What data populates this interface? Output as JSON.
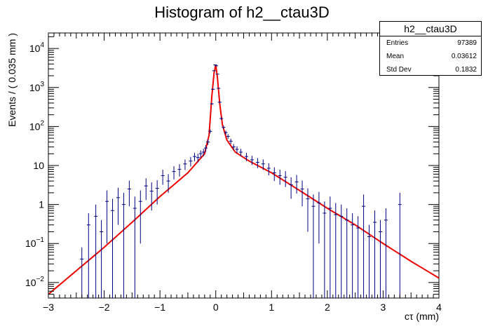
{
  "chart_data": {
    "type": "scatter",
    "title": "Histogram of h2__ctau3D",
    "xlabel": "cτ (mm)",
    "ylabel": "Events / ( 0.035 mm )",
    "xlim": [
      -3,
      4
    ],
    "ylim": [
      0.004,
      25000
    ],
    "yscale": "log",
    "x_ticks": [
      "−3",
      "−2",
      "−1",
      "0",
      "1",
      "2",
      "3",
      "4"
    ],
    "y_ticks": [
      {
        "v": 0.01,
        "label": "10^-2"
      },
      {
        "v": 0.1,
        "label": "10^-1"
      },
      {
        "v": 1,
        "label": "1"
      },
      {
        "v": 10,
        "label": "10"
      },
      {
        "v": 100,
        "label": "10^2"
      },
      {
        "v": 1000,
        "label": "10^3"
      },
      {
        "v": 10000,
        "label": "10^4"
      }
    ],
    "stats": {
      "name": "h2__ctau3D",
      "entries_label": "Entries",
      "entries": "97389",
      "mean_label": "Mean",
      "mean": "0.03612",
      "stddev_label": "Std Dev",
      "stddev": "0.1832"
    },
    "fit_curve": {
      "color": "#ee0000",
      "x": [
        -3.0,
        -2.5,
        -2.0,
        -1.5,
        -1.0,
        -0.5,
        -0.2,
        -0.12,
        -0.07,
        -0.03,
        0.0,
        0.03,
        0.07,
        0.12,
        0.2,
        0.35,
        0.6,
        1.0,
        1.5,
        2.0,
        2.5,
        3.0,
        3.5,
        4.0
      ],
      "y": [
        0.005,
        0.02,
        0.08,
        0.35,
        1.6,
        6.5,
        20,
        60,
        600,
        2400,
        3800,
        1800,
        400,
        110,
        45,
        22,
        13,
        6.5,
        2.3,
        0.8,
        0.3,
        0.1,
        0.035,
        0.013
      ]
    },
    "series": [
      {
        "color": "#000080",
        "x": [
          -2.4,
          -2.28,
          -2.15,
          -2.05,
          -1.95,
          -1.85,
          -1.75,
          -1.65,
          -1.55,
          -1.45,
          -1.35,
          -1.25,
          -1.15,
          -1.05,
          -0.95,
          -0.85,
          -0.75,
          -0.65,
          -0.55,
          -0.45,
          -0.38,
          -0.32,
          -0.27,
          -0.22,
          -0.18,
          -0.14,
          -0.1,
          -0.07,
          -0.05,
          -0.03,
          -0.01,
          0.01,
          0.03,
          0.05,
          0.07,
          0.1,
          0.14,
          0.18,
          0.22,
          0.27,
          0.32,
          0.38,
          0.45,
          0.55,
          0.65,
          0.75,
          0.85,
          0.95,
          1.05,
          1.15,
          1.25,
          1.35,
          1.45,
          1.55,
          1.65,
          1.75,
          1.85,
          1.95,
          2.05,
          2.15,
          2.25,
          2.35,
          2.45,
          2.55,
          2.65,
          2.75,
          2.85,
          2.95,
          3.05,
          3.3
        ],
        "y": [
          0.04,
          0.3,
          0.5,
          0.2,
          1.2,
          0.7,
          1.5,
          1.0,
          2.5,
          0.8,
          1.2,
          3.0,
          2.2,
          2.6,
          5.5,
          4.0,
          7.0,
          8.0,
          11,
          13,
          17,
          16,
          20,
          22,
          28,
          40,
          75,
          380,
          900,
          2700,
          3800,
          3600,
          2200,
          950,
          420,
          160,
          95,
          70,
          56,
          42,
          30,
          26,
          22,
          17,
          14,
          12,
          11,
          8.5,
          6.5,
          5.5,
          5.0,
          3.2,
          3.8,
          2.5,
          1.4,
          0.9,
          1.1,
          0.6,
          0.8,
          0.55,
          0.5,
          0.4,
          0.3,
          0.25,
          0.9,
          0.15,
          0.35,
          0.2,
          0.4,
          1.0
        ],
        "err": [
          0.04,
          0.3,
          0.5,
          0.2,
          1.1,
          0.7,
          1.2,
          1.0,
          1.6,
          0.8,
          1.1,
          1.7,
          1.5,
          1.6,
          2.3,
          2.0,
          2.6,
          2.8,
          3.3,
          3.6,
          4.1,
          4.0,
          4.5,
          4.7,
          5.3,
          6.3,
          8.7,
          19,
          30,
          52,
          62,
          60,
          47,
          31,
          20,
          13,
          9.7,
          8.4,
          7.5,
          6.5,
          5.5,
          5.1,
          4.7,
          4.1,
          3.7,
          3.5,
          3.3,
          2.9,
          2.5,
          2.3,
          2.2,
          1.8,
          1.9,
          1.6,
          1.2,
          0.9,
          1.0,
          0.6,
          0.8,
          0.55,
          0.5,
          0.4,
          0.3,
          0.25,
          0.9,
          0.15,
          0.35,
          0.2,
          0.4,
          1.0
        ]
      }
    ]
  }
}
